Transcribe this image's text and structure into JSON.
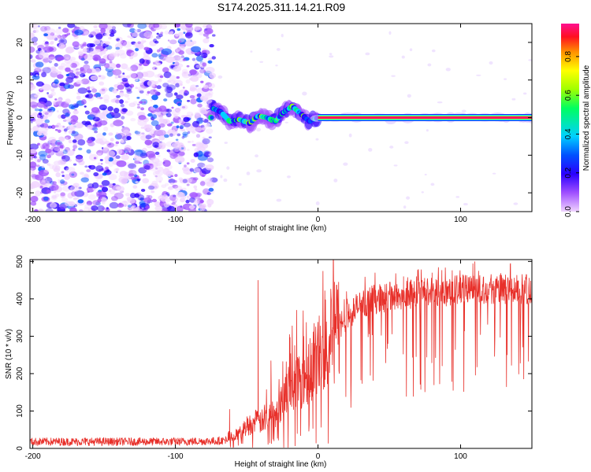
{
  "figure": {
    "title": "S174.2025.311.14.21.R09"
  },
  "colors": {
    "snr_line": "#e8302a",
    "background": "#ffffff",
    "frame": "#000000"
  },
  "chart_data": [
    {
      "type": "heatmap",
      "name": "spectrogram",
      "xlabel": "Height of straight line (km)",
      "ylabel": "Frequency (Hz)",
      "xlim": [
        -202,
        150
      ],
      "ylim": [
        -25,
        25
      ],
      "xticks": [
        -200,
        -100,
        0,
        100
      ],
      "yticks": [
        -20,
        -10,
        0,
        10,
        20
      ],
      "grid": false,
      "colorbar": {
        "label": "Normalized spectral amplitude",
        "range": [
          0,
          0.97
        ],
        "ticks": [
          0.0,
          0.2,
          0.4,
          0.6,
          0.8
        ],
        "colormap": "rainbow (lavender to magenta)"
      },
      "regions": [
        {
          "description": "broadband noise",
          "x": [
            -202,
            -73
          ],
          "y": [
            -25,
            25
          ],
          "amplitude": [
            0.05,
            0.35
          ]
        },
        {
          "description": "wandering carrier",
          "x": [
            -75,
            0
          ],
          "frequency_trace": [
            [
              -74,
              2.5
            ],
            [
              -68,
              1.5
            ],
            [
              -62,
              -1.0
            ],
            [
              -55,
              -0.5
            ],
            [
              -48,
              -1.5
            ],
            [
              -42,
              0.5
            ],
            [
              -36,
              0
            ],
            [
              -30,
              -1.0
            ],
            [
              -24,
              1.5
            ],
            [
              -18,
              3.0
            ],
            [
              -12,
              1.0
            ],
            [
              -6,
              -1.0
            ],
            [
              0,
              0
            ]
          ],
          "amplitude": [
            0.2,
            0.7
          ]
        },
        {
          "description": "steady carrier",
          "x": [
            0,
            150
          ],
          "frequency": 0,
          "amplitude": [
            0.85,
            0.97
          ]
        }
      ]
    },
    {
      "type": "line",
      "name": "snr",
      "xlabel": "Height of straight line (km)",
      "ylabel": "SNR (10 * v/v)",
      "xlim": [
        -202,
        150
      ],
      "ylim": [
        0,
        505
      ],
      "xticks": [
        -200,
        -100,
        0,
        100
      ],
      "yticks": [
        0,
        100,
        200,
        300,
        400,
        500
      ],
      "grid": false,
      "series": [
        {
          "name": "SNR",
          "envelope_x": [
            -202,
            -150,
            -100,
            -70,
            -65,
            -60,
            -55,
            -50,
            -45,
            -40,
            -35,
            -30,
            -25,
            -20,
            -15,
            -10,
            -5,
            0,
            5,
            10,
            15,
            20,
            25,
            30,
            40,
            50,
            60,
            70,
            80,
            90,
            100,
            110,
            120,
            130,
            140,
            150
          ],
          "envelope_y": [
            18,
            18,
            18,
            20,
            22,
            30,
            40,
            60,
            70,
            70,
            85,
            100,
            130,
            160,
            180,
            200,
            220,
            250,
            280,
            300,
            330,
            350,
            370,
            385,
            400,
            405,
            410,
            415,
            420,
            420,
            425,
            425,
            425,
            425,
            425,
            425
          ],
          "spikes": [
            [
              -62,
              105
            ],
            [
              -42,
              450
            ],
            [
              -33,
              235
            ],
            [
              -20,
              305
            ],
            [
              -15,
              370
            ],
            [
              -10,
              300
            ],
            [
              20,
              420
            ],
            [
              40,
              470
            ],
            [
              60,
              460
            ],
            [
              80,
              470
            ],
            [
              110,
              500
            ],
            [
              135,
              495
            ],
            [
              148,
              445
            ]
          ]
        }
      ]
    }
  ]
}
